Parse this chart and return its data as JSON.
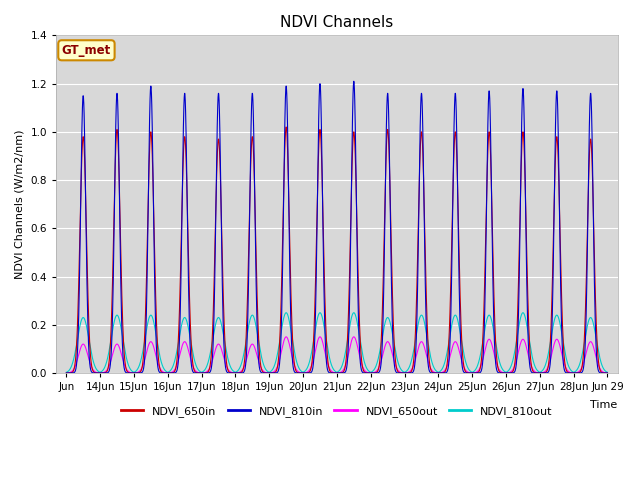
{
  "title": "NDVI Channels",
  "xlabel": "Time",
  "ylabel": "NDVI Channels (W/m2/nm)",
  "ylim": [
    0,
    1.4
  ],
  "yticks": [
    0.0,
    0.2,
    0.4,
    0.6,
    0.8,
    1.0,
    1.2,
    1.4
  ],
  "annotation_text": "GT_met",
  "annotation_bg": "#ffffcc",
  "annotation_border": "#cc8800",
  "plot_bg": "#d8d8d8",
  "fig_bg": "#ffffff",
  "colors": {
    "NDVI_650in": "#cc0000",
    "NDVI_810in": "#0000cc",
    "NDVI_650out": "#ff00ff",
    "NDVI_810out": "#00cccc"
  },
  "legend_labels": [
    "NDVI_650in",
    "NDVI_810in",
    "NDVI_650out",
    "NDVI_810out"
  ],
  "n_days": 16,
  "start_day": 13,
  "peak_650in": [
    0.98,
    1.01,
    1.0,
    0.98,
    0.97,
    0.98,
    1.02,
    1.01,
    1.0,
    1.01,
    1.0,
    1.0,
    1.0,
    1.0,
    0.98,
    0.97
  ],
  "peak_810in": [
    1.15,
    1.16,
    1.19,
    1.16,
    1.16,
    1.16,
    1.19,
    1.2,
    1.21,
    1.16,
    1.16,
    1.16,
    1.17,
    1.18,
    1.17,
    1.16
  ],
  "peak_650out": [
    0.12,
    0.12,
    0.13,
    0.13,
    0.12,
    0.12,
    0.15,
    0.15,
    0.15,
    0.13,
    0.13,
    0.13,
    0.14,
    0.14,
    0.14,
    0.13
  ],
  "peak_810out": [
    0.23,
    0.24,
    0.24,
    0.23,
    0.23,
    0.24,
    0.25,
    0.25,
    0.25,
    0.23,
    0.24,
    0.24,
    0.24,
    0.25,
    0.24,
    0.23
  ],
  "samples_per_day": 200
}
